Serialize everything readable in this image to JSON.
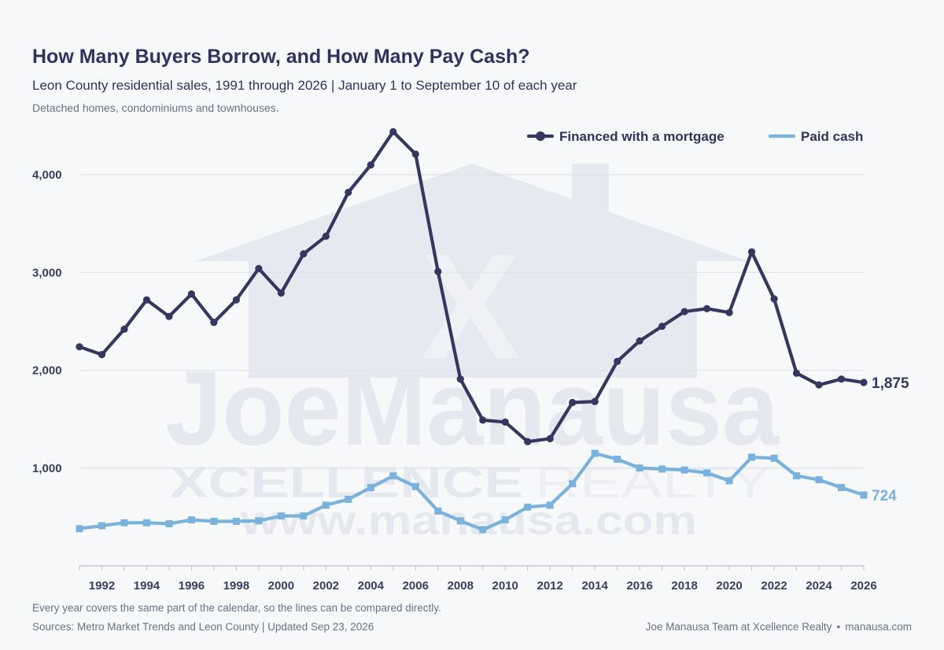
{
  "header": {
    "title": "How Many Buyers Borrow, and How Many Pay Cash?",
    "subtitle": "Leon County residential sales, 1991 through 2026  |  January 1 to September 10 of each year",
    "note": "Detached homes, condominiums and townhouses."
  },
  "footer": {
    "footnote": "Every year covers the same part of the calendar, so the lines can be compared directly.",
    "sources": "Sources: Metro Market Trends and Leon County  |  Updated Sep 23, 2026",
    "credit_name": "Joe Manausa Team at Xcellence Realty",
    "credit_site": "manausa.com"
  },
  "watermark": {
    "name": "JoeManausa",
    "brand": "XCELLENCE",
    "brand_suffix": "REALTY",
    "url": "www.manausa.com"
  },
  "colors": {
    "mortgage": "#35375f",
    "cash": "#7ab2de",
    "grid": "#dfe2e8",
    "watermark": "#e6e8ef"
  },
  "chart_data": {
    "type": "line",
    "x": [
      1991,
      1992,
      1993,
      1994,
      1995,
      1996,
      1997,
      1998,
      1999,
      2000,
      2001,
      2002,
      2003,
      2004,
      2005,
      2006,
      2007,
      2008,
      2009,
      2010,
      2011,
      2012,
      2013,
      2014,
      2015,
      2016,
      2017,
      2018,
      2019,
      2020,
      2021,
      2022,
      2023,
      2024,
      2025,
      2026
    ],
    "xticks": [
      1992,
      1994,
      1996,
      1998,
      2000,
      2002,
      2004,
      2006,
      2008,
      2010,
      2012,
      2014,
      2016,
      2018,
      2020,
      2022,
      2024,
      2026
    ],
    "yticks": [
      1000,
      2000,
      3000,
      4000
    ],
    "ytick_labels": [
      "1,000",
      "2,000",
      "3,000",
      "4,000"
    ],
    "xlim": [
      1991,
      2026
    ],
    "ylim": [
      0,
      4600
    ],
    "grid": true,
    "legend_position": "top-right",
    "series": [
      {
        "name": "Financed with a mortgage",
        "marker": "circle",
        "end_label": "1,875",
        "values": [
          2240,
          2160,
          2420,
          2720,
          2550,
          2780,
          2490,
          2720,
          3040,
          2790,
          3190,
          3370,
          3820,
          4100,
          4440,
          4210,
          3010,
          1910,
          1490,
          1470,
          1270,
          1300,
          1670,
          1680,
          2090,
          2300,
          2450,
          2600,
          2630,
          2590,
          3210,
          2730,
          1970,
          1850,
          1910,
          1875
        ]
      },
      {
        "name": "Paid cash",
        "marker": "square",
        "end_label": "724",
        "values": [
          380,
          410,
          440,
          440,
          430,
          470,
          455,
          455,
          460,
          510,
          510,
          620,
          680,
          800,
          920,
          810,
          560,
          460,
          370,
          470,
          600,
          620,
          840,
          1150,
          1090,
          1000,
          990,
          980,
          950,
          870,
          1110,
          1100,
          920,
          880,
          800,
          724
        ]
      }
    ]
  }
}
